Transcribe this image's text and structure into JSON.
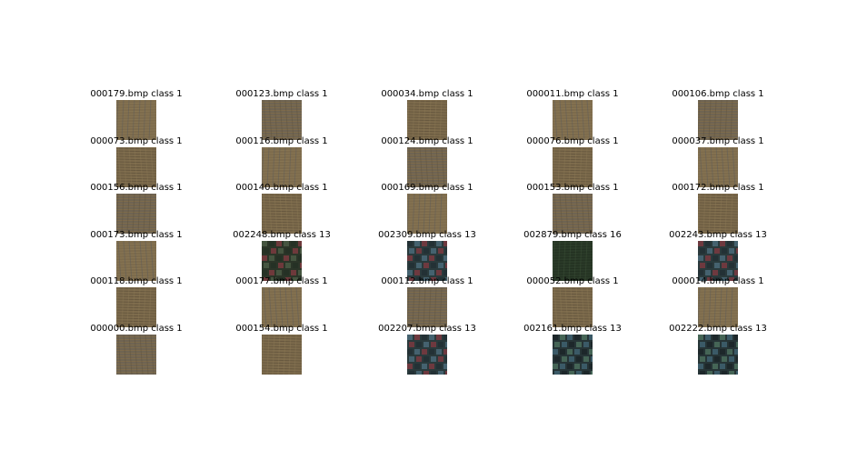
{
  "figure": {
    "images": [
      {
        "caption": "000179.bmp class 1",
        "texture": "khaki-weave"
      },
      {
        "caption": "000123.bmp class 1",
        "texture": "khaki-weave"
      },
      {
        "caption": "000034.bmp class 1",
        "texture": "khaki-weave"
      },
      {
        "caption": "000011.bmp class 1",
        "texture": "khaki-weave"
      },
      {
        "caption": "000106.bmp class 1",
        "texture": "khaki-weave"
      },
      {
        "caption": "000073.bmp class 1",
        "texture": "khaki-weave"
      },
      {
        "caption": "000116.bmp class 1",
        "texture": "khaki-weave"
      },
      {
        "caption": "000124.bmp class 1",
        "texture": "khaki-weave"
      },
      {
        "caption": "000076.bmp class 1",
        "texture": "khaki-weave"
      },
      {
        "caption": "000037.bmp class 1",
        "texture": "khaki-weave"
      },
      {
        "caption": "000156.bmp class 1",
        "texture": "khaki-weave"
      },
      {
        "caption": "000140.bmp class 1",
        "texture": "khaki-weave"
      },
      {
        "caption": "000169.bmp class 1",
        "texture": "khaki-weave"
      },
      {
        "caption": "000153.bmp class 1",
        "texture": "khaki-weave"
      },
      {
        "caption": "000172.bmp class 1",
        "texture": "khaki-weave"
      },
      {
        "caption": "000173.bmp class 1",
        "texture": "khaki-weave"
      },
      {
        "caption": "002248.bmp class 13",
        "texture": "dark-red-green-weave"
      },
      {
        "caption": "002309.bmp class 13",
        "texture": "dark-blue-red-weave"
      },
      {
        "caption": "002879.bmp class 16",
        "texture": "dark-green-weave"
      },
      {
        "caption": "002243.bmp class 13",
        "texture": "dark-blue-red-weave"
      },
      {
        "caption": "000118.bmp class 1",
        "texture": "khaki-weave"
      },
      {
        "caption": "000177.bmp class 1",
        "texture": "khaki-weave"
      },
      {
        "caption": "000112.bmp class 1",
        "texture": "khaki-weave"
      },
      {
        "caption": "000052.bmp class 1",
        "texture": "khaki-weave"
      },
      {
        "caption": "000014.bmp class 1",
        "texture": "khaki-weave"
      },
      {
        "caption": "000000.bmp class 1",
        "texture": "khaki-weave"
      },
      {
        "caption": "000154.bmp class 1",
        "texture": "khaki-weave"
      },
      {
        "caption": "002207.bmp class 13",
        "texture": "dark-blue-red-weave"
      },
      {
        "caption": "002161.bmp class 13",
        "texture": "dark-blue-checker"
      },
      {
        "caption": "002222.bmp class 13",
        "texture": "dark-blue-checker"
      }
    ]
  }
}
